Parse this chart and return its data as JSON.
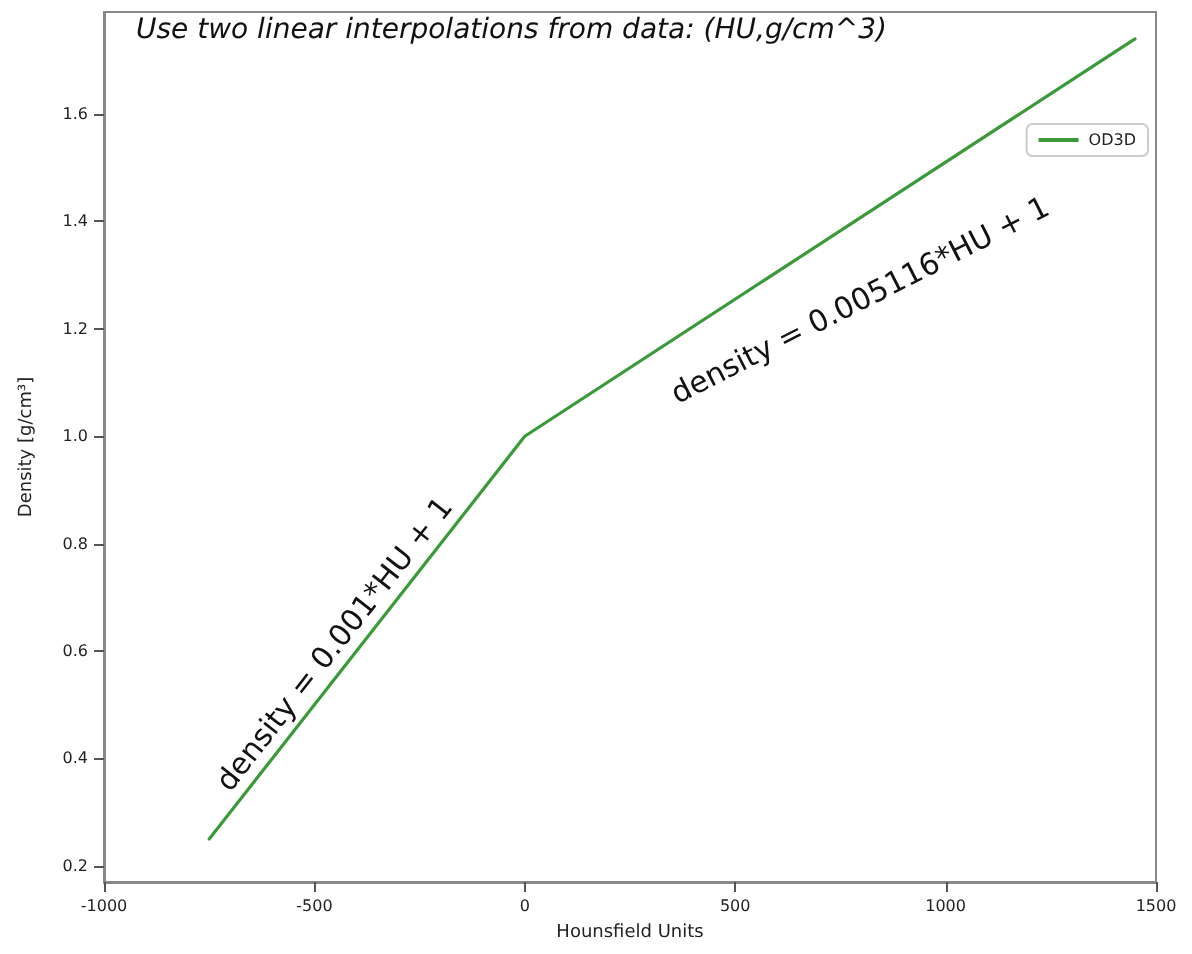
{
  "chart_data": {
    "type": "line",
    "title": "Use two linear interpolations from data: (HU,g/cm^3)",
    "xlabel": "Hounsfield Units",
    "ylabel": "Density [g/cm³]",
    "series": [
      {
        "name": "OD3D",
        "color": "#3a9a3a",
        "x": [
          -750,
          0,
          1450
        ],
        "values": [
          0.25,
          1.0,
          1.74
        ]
      }
    ],
    "xlim": [
      -1000,
      1500
    ],
    "xticks": [
      -1000,
      -500,
      0,
      500,
      1000,
      1500
    ],
    "ylim": [
      0.17,
      1.79
    ],
    "yticks": [
      0.2,
      0.4,
      0.6,
      0.8,
      {
        "value": 1,
        "label": "1.0"
      },
      1.2,
      1.4,
      1.6
    ],
    "annotations": [
      "density = 0.001*HU + 1",
      "density = 0.005116*HU + 1"
    ],
    "grid": false,
    "legend": "top right",
    "marker": "none",
    "line_style": "solid"
  }
}
